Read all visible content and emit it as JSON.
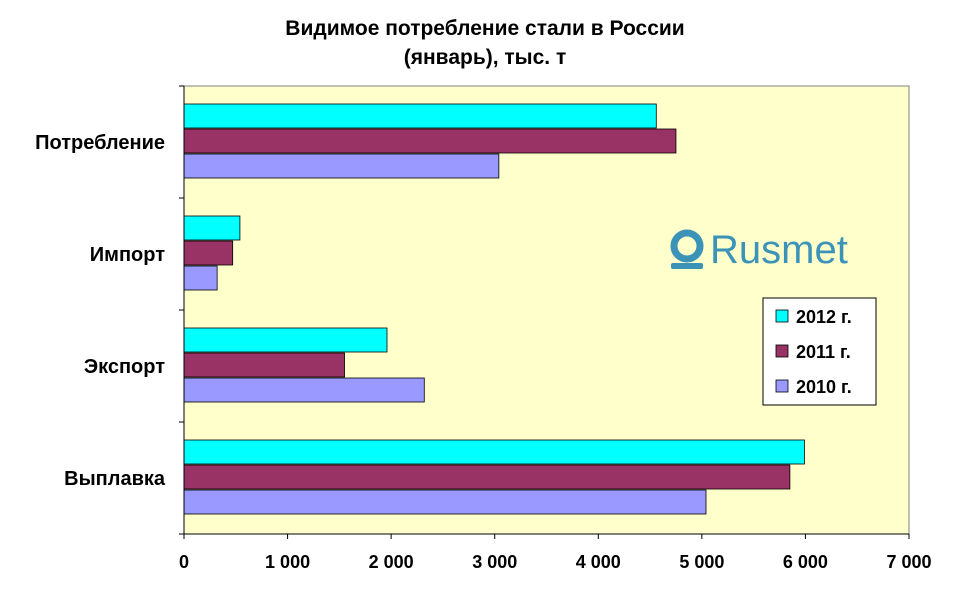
{
  "chart_data": {
    "type": "bar",
    "orientation": "horizontal",
    "title_line1": "Видимое потребление стали в России",
    "title_line2": "(январь), тыс. т",
    "categories": [
      "Потребление",
      "Импорт",
      "Экспорт",
      "Выплавка"
    ],
    "series": [
      {
        "name": "2012 г.",
        "color": "#00ffff",
        "values": [
          4560,
          540,
          1960,
          5990
        ]
      },
      {
        "name": "2011 г.",
        "color": "#993366",
        "values": [
          4750,
          470,
          1550,
          5850
        ]
      },
      {
        "name": "2010 г.",
        "color": "#9999ff",
        "values": [
          3040,
          320,
          2320,
          5040
        ]
      }
    ],
    "xlim": [
      0,
      7000
    ],
    "ticks": [
      "0",
      "1 000",
      "2 000",
      "3 000",
      "4 000",
      "5 000",
      "6 000",
      "7 000"
    ],
    "plot_background": "#ffffcc",
    "grid": false,
    "legend_position": "right"
  },
  "watermark": {
    "text": "Rusmet",
    "color": "#3c93b8"
  }
}
